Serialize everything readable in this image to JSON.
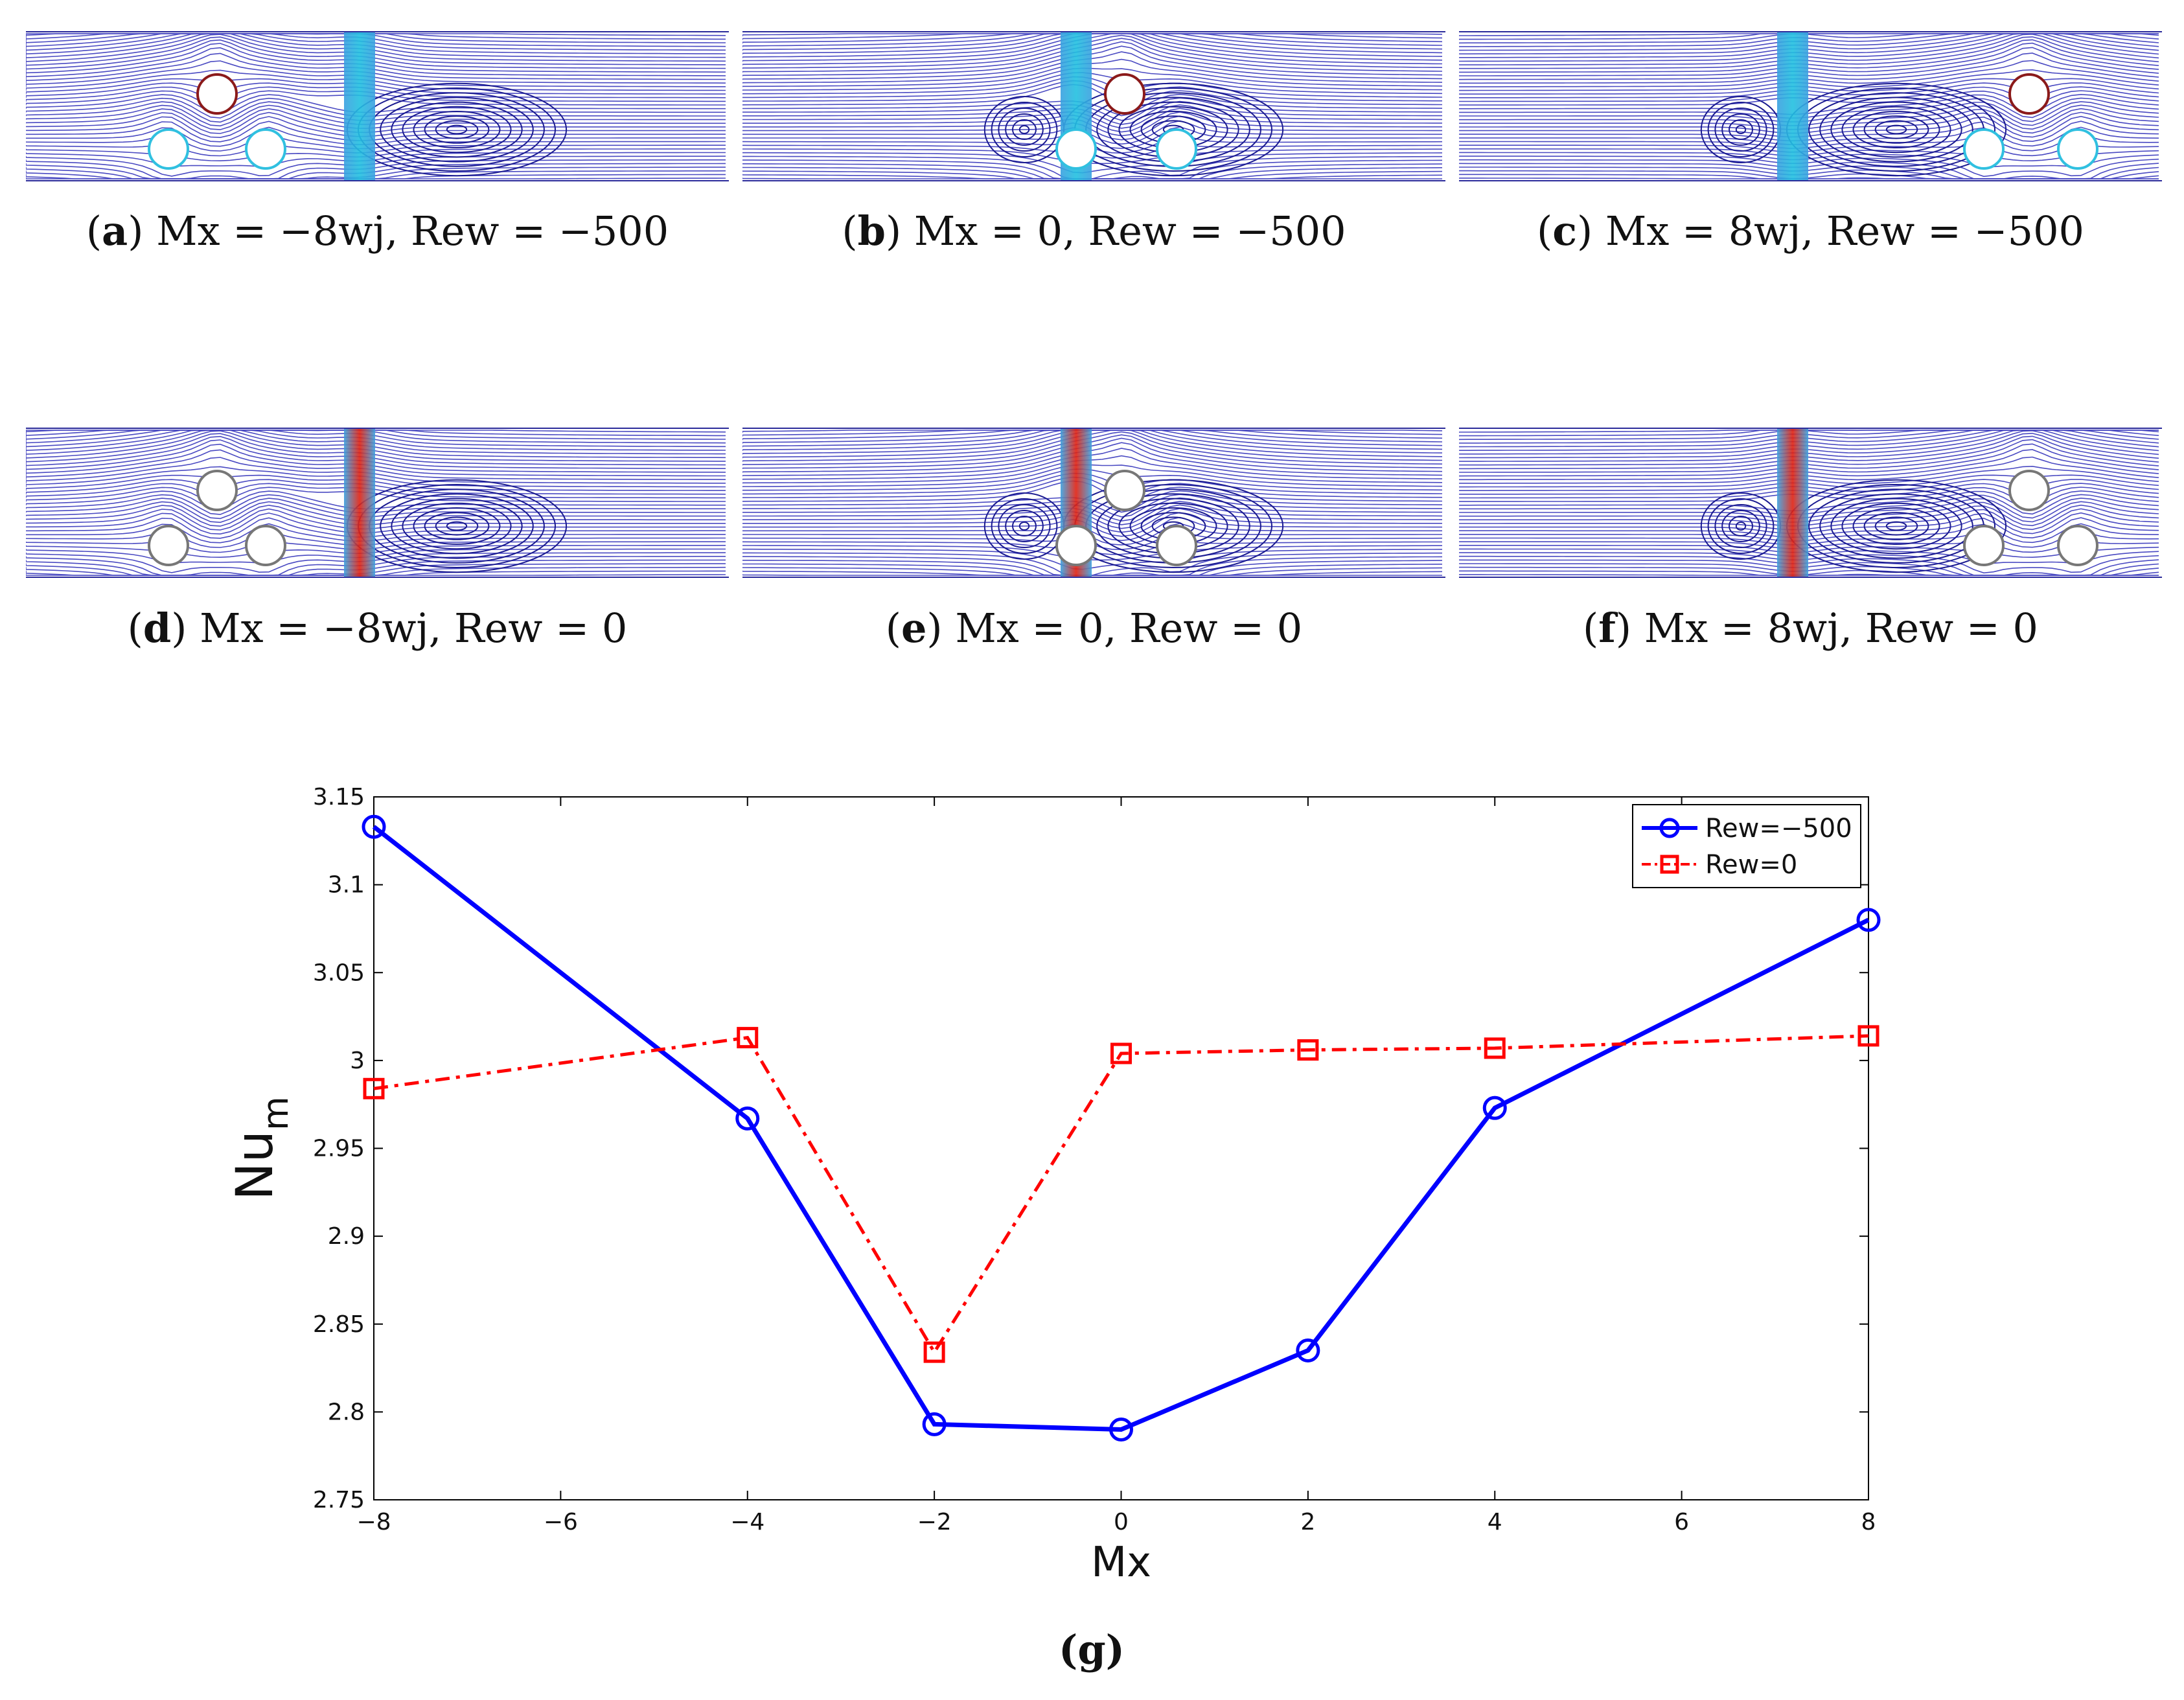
{
  "panels": [
    {
      "id": "a",
      "letter": "a",
      "text": "Mx = −8wj, Rew = −500",
      "rew": -500,
      "mx": -8
    },
    {
      "id": "b",
      "letter": "b",
      "text": "Mx = 0, Rew = −500",
      "rew": -500,
      "mx": 0
    },
    {
      "id": "c",
      "letter": "c",
      "text": "Mx = 8wj, Rew = −500",
      "rew": -500,
      "mx": 8
    },
    {
      "id": "d",
      "letter": "d",
      "text": "Mx = −8wj, Rew = 0",
      "rew": 0,
      "mx": -8
    },
    {
      "id": "e",
      "letter": "e",
      "text": "Mx = 0, Rew = 0",
      "rew": 0,
      "mx": 0
    },
    {
      "id": "f",
      "letter": "f",
      "text": "Mx = 8wj, Rew = 0",
      "rew": 0,
      "mx": 8
    }
  ],
  "colors": {
    "streamline": "#2b2bb8",
    "jet_low": "#22c0e0",
    "jet_high": "#e02010",
    "series1": "#0000ff",
    "series2": "#ff0000"
  },
  "chart_caption": "g",
  "chart_data": {
    "type": "line",
    "xlabel": "Mx",
    "ylabel_main": "Nu",
    "ylabel_sub": "m",
    "xlim": [
      -8,
      8
    ],
    "ylim": [
      2.75,
      3.15
    ],
    "xticks": [
      -8,
      -6,
      -4,
      -2,
      0,
      2,
      4,
      6,
      8
    ],
    "xtick_labels": [
      "−8",
      "−6",
      "−4",
      "−2",
      "0",
      "2",
      "4",
      "6",
      "8"
    ],
    "yticks": [
      2.75,
      2.8,
      2.85,
      2.9,
      2.95,
      3,
      3.05,
      3.1,
      3.15
    ],
    "ytick_labels": [
      "2.75",
      "2.8",
      "2.85",
      "2.9",
      "2.95",
      "3",
      "3.05",
      "3.1",
      "3.15"
    ],
    "grid": false,
    "legend_position": "top-right",
    "series": [
      {
        "name": "Rew=−500",
        "marker": "circle",
        "line": "solid",
        "x": [
          -8,
          -4,
          -2,
          0,
          2,
          4,
          8
        ],
        "y": [
          3.133,
          2.967,
          2.793,
          2.79,
          2.835,
          2.973,
          3.08
        ]
      },
      {
        "name": "Rew=0",
        "marker": "square",
        "line": "dashdot",
        "x": [
          -8,
          -4,
          -2,
          0,
          2,
          4,
          8
        ],
        "y": [
          2.984,
          3.013,
          2.834,
          3.004,
          3.006,
          3.007,
          3.014
        ]
      }
    ]
  }
}
